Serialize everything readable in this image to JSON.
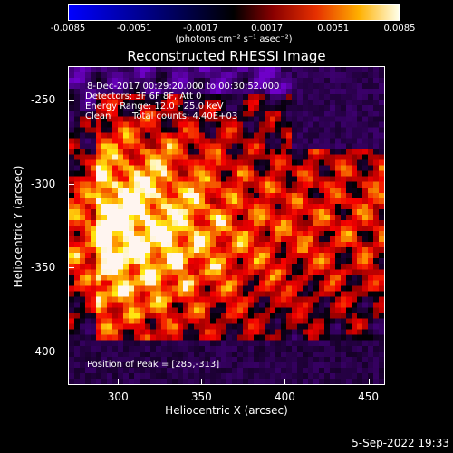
{
  "colorbar": {
    "ticks": [
      "-0.0085",
      "-0.0051",
      "-0.0017",
      "0.0017",
      "0.0051",
      "0.0085"
    ],
    "label": "(photons cm⁻² s⁻¹ asec⁻²)",
    "range": [
      -0.0085,
      0.0085
    ]
  },
  "chart_data": {
    "type": "heatmap",
    "title": "Reconstructed RHESSI Image",
    "xlabel": "Heliocentric X (arcsec)",
    "ylabel": "Heliocentric Y (arcsec)",
    "xlim": [
      270,
      460
    ],
    "ylim": [
      -420,
      -230
    ],
    "x_ticks": [
      "300",
      "350",
      "400",
      "450"
    ],
    "y_ticks": [
      "-250",
      "-300",
      "-350",
      "-400"
    ],
    "x_tick_values": [
      300,
      350,
      400,
      450
    ],
    "y_tick_values": [
      -250,
      -300,
      -350,
      -400
    ],
    "peak": [
      285,
      -313
    ],
    "value_range": [
      -0.0085,
      0.0085
    ]
  },
  "info": {
    "line1": "8-Dec-2017 00:29:20.000 to 00:30:52.000",
    "line2": "Detectors: 3F 6F 8F, Att 0",
    "line3": "Energy Range: 12.0 - 25.0 keV",
    "line4a": "Clean",
    "line4b": "Total counts: 4.40E+03",
    "peak_text": "Position of Peak = [285,-313]"
  },
  "timestamp": "5-Sep-2022 19:33"
}
